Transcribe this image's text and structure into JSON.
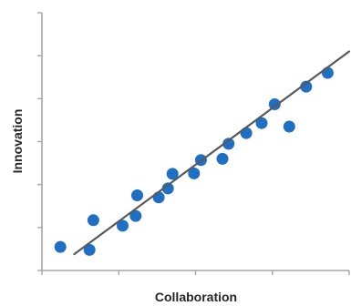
{
  "chart_data": {
    "type": "scatter",
    "title": "",
    "xlabel": "Collaboration",
    "ylabel": "Innovation",
    "xlim": [
      0,
      4
    ],
    "ylim": [
      0,
      6
    ],
    "x_ticks": [
      0,
      1,
      2,
      3,
      4
    ],
    "y_ticks": [
      0,
      1,
      2,
      3,
      4,
      5,
      6
    ],
    "grid": false,
    "legend": "none",
    "colors": {
      "points": "#1f6fc5",
      "trendline": "#595959",
      "axes": "#a6a6a6",
      "text": "#262626"
    },
    "series": [
      {
        "x": [
          0.24,
          0.62,
          0.67,
          1.05,
          1.22,
          1.24,
          1.52,
          1.64,
          1.7,
          1.98,
          2.07,
          2.35,
          2.43,
          2.66,
          2.86,
          3.03,
          3.22,
          3.44,
          3.72
        ],
        "y": [
          0.55,
          0.48,
          1.17,
          1.04,
          1.27,
          1.75,
          1.7,
          1.91,
          2.25,
          2.26,
          2.57,
          2.6,
          2.95,
          3.2,
          3.43,
          3.87,
          3.35,
          4.28,
          4.6
        ]
      }
    ],
    "trendline": {
      "x": [
        0.42,
        4.0
      ],
      "y": [
        0.38,
        5.1
      ]
    }
  }
}
